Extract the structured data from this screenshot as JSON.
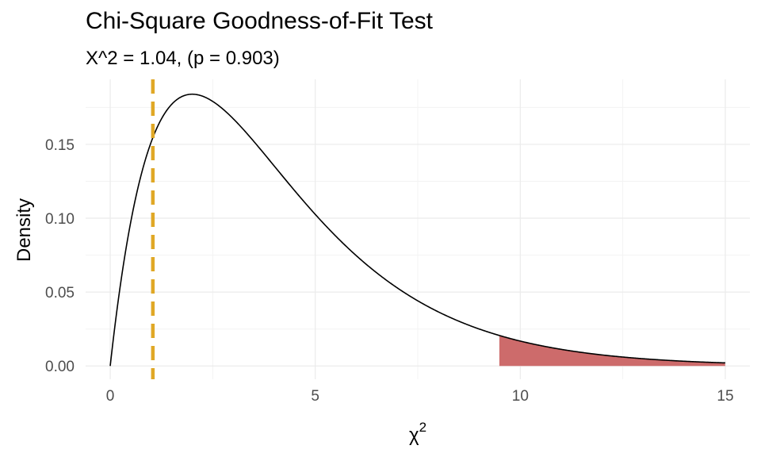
{
  "chart_data": {
    "type": "line",
    "title": "Chi-Square Goodness-of-Fit Test",
    "subtitle": "X^2 = 1.04, (p = 0.903)",
    "xlabel": "χ",
    "xlabel_superscript": "2",
    "ylabel": "Density",
    "xlim": [
      -0.6,
      15.6
    ],
    "ylim": [
      -0.009,
      0.194
    ],
    "x_ticks": [
      0,
      5,
      10,
      15
    ],
    "y_ticks": [
      0.0,
      0.05,
      0.1,
      0.15
    ],
    "x_tick_labels": [
      "0",
      "5",
      "10",
      "15"
    ],
    "y_tick_labels": [
      "0.00",
      "0.05",
      "0.10",
      "0.15"
    ],
    "grid": true,
    "series": [
      {
        "distribution": "chi-square density, df = 4",
        "x": [
          0,
          0.5,
          1,
          1.5,
          2,
          2.5,
          3,
          3.5,
          4,
          4.5,
          5,
          5.5,
          6,
          6.5,
          7,
          7.5,
          8,
          8.5,
          9,
          9.5,
          10,
          10.5,
          11,
          11.5,
          12,
          12.5,
          13,
          13.5,
          14,
          14.5,
          15
        ],
        "values": [
          0,
          0.0974,
          0.1516,
          0.1771,
          0.1839,
          0.179,
          0.1673,
          0.152,
          0.1353,
          0.1186,
          0.1026,
          0.0879,
          0.0747,
          0.063,
          0.0528,
          0.0441,
          0.0366,
          0.0303,
          0.025,
          0.0205,
          0.0168,
          0.0137,
          0.0112,
          0.0091,
          0.0074,
          0.006,
          0.0049,
          0.004,
          0.0032,
          0.0026,
          0.0021
        ],
        "color": "#000000"
      }
    ],
    "critical_region": {
      "from": 9.49,
      "to": 15,
      "color": "#cd6b6b"
    },
    "test_statistic": {
      "value": 1.04,
      "color": "#e0a826",
      "style": "dashed"
    }
  }
}
